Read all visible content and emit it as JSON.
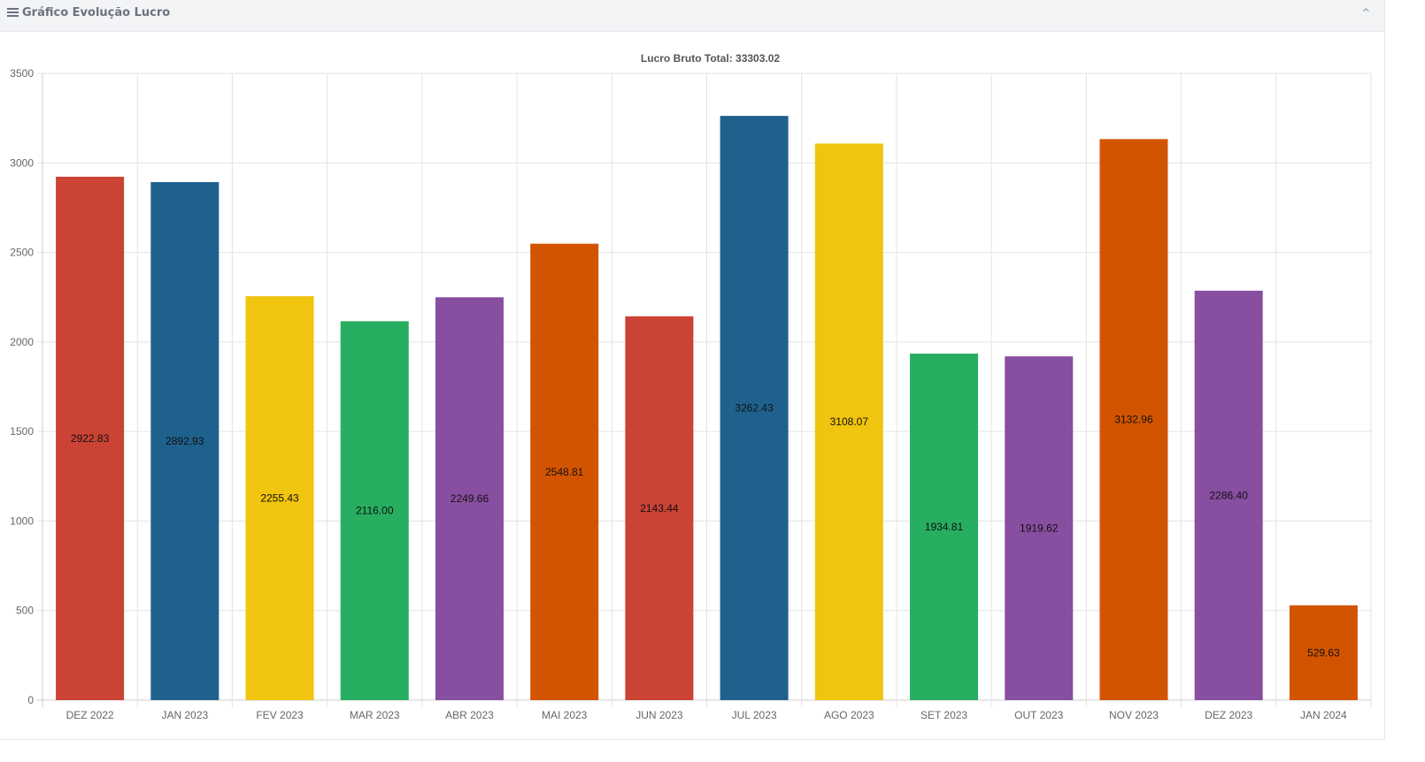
{
  "panel": {
    "title": "Gráfico Evolução Lucro",
    "title_icon": "list-icon",
    "collapse_icon": "chevron-up-icon"
  },
  "chart_data": {
    "type": "bar",
    "title": "Lucro Bruto Total: 33303.02",
    "xlabel": "",
    "ylabel": "",
    "ylim": [
      0,
      3500
    ],
    "yticks": [
      0,
      500,
      1000,
      1500,
      2000,
      2500,
      3000,
      3500
    ],
    "grid": true,
    "categories": [
      "DEZ 2022",
      "JAN 2023",
      "FEV 2023",
      "MAR 2023",
      "ABR 2023",
      "MAI 2023",
      "JUN 2023",
      "JUL 2023",
      "AGO 2023",
      "SET 2023",
      "OUT 2023",
      "NOV 2023",
      "DEZ 2023",
      "JAN 2024"
    ],
    "values": [
      2922.83,
      2892.93,
      2255.43,
      2116.0,
      2249.66,
      2548.81,
      2143.44,
      3262.43,
      3108.07,
      1934.81,
      1919.62,
      3132.96,
      2286.4,
      529.63
    ],
    "labels": [
      "2922.83",
      "2892.93",
      "2255.43",
      "2116.00",
      "2249.66",
      "2548.81",
      "2143.44",
      "3262.43",
      "3108.07",
      "1934.81",
      "1919.62",
      "3132.96",
      "2286.40",
      "529.63"
    ],
    "colors": [
      "#cb4335",
      "#1f618d",
      "#f1c40f",
      "#27ae60",
      "#884ea0",
      "#d35400",
      "#cb4335",
      "#1f618d",
      "#f1c40f",
      "#27ae60",
      "#884ea0",
      "#d35400",
      "#884ea0",
      "#d35400"
    ]
  }
}
